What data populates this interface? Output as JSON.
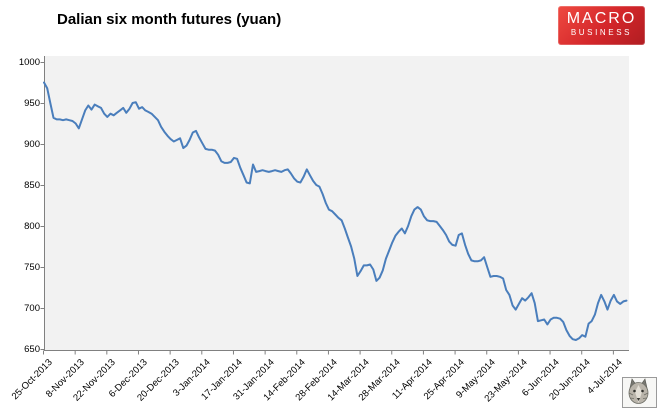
{
  "header": {
    "title": "Dalian six month futures (yuan)"
  },
  "logo": {
    "line1": "MACRO",
    "line2": "BUSINESS",
    "bg_color": "#cc2428",
    "text_color": "#ffffff"
  },
  "wolf_icon": {
    "name": "macrobusiness-wolf-mascot"
  },
  "chart_data": {
    "type": "line",
    "title": "Dalian six month futures (yuan)",
    "xlabel": "",
    "ylabel": "",
    "ylim": [
      650,
      1000
    ],
    "y_ticks": [
      650,
      700,
      750,
      800,
      850,
      900,
      950,
      1000
    ],
    "grid": false,
    "legend": false,
    "plot_bg": "#f2f2f2",
    "axis_color": "#808080",
    "series_color": "#4a7ebc",
    "x_tick_labels": [
      "25-Oct-2013",
      "8-Nov-2013",
      "22-Nov-2013",
      "6-Dec-2013",
      "20-Dec-2013",
      "3-Jan-2014",
      "17-Jan-2014",
      "31-Jan-2014",
      "14-Feb-2014",
      "28-Feb-2014",
      "14-Mar-2014",
      "28-Mar-2014",
      "11-Apr-2014",
      "25-Apr-2014",
      "9-May-2014",
      "23-May-2014",
      "6-Jun-2014",
      "20-Jun-2014",
      "4-Jul-2014"
    ],
    "points_per_tick": 10,
    "values": [
      975,
      968,
      950,
      932,
      930,
      930,
      929,
      930,
      929,
      928,
      925,
      919,
      930,
      941,
      947,
      942,
      948,
      946,
      944,
      937,
      933,
      937,
      935,
      938,
      941,
      944,
      938,
      943,
      950,
      951,
      943,
      945,
      941,
      939,
      937,
      933,
      929,
      921,
      915,
      910,
      906,
      903,
      905,
      907,
      895,
      898,
      905,
      914,
      916,
      908,
      901,
      894,
      893,
      893,
      892,
      887,
      879,
      877,
      877,
      878,
      883,
      882,
      871,
      862,
      853,
      852,
      875,
      866,
      867,
      868,
      867,
      866,
      867,
      868,
      867,
      866,
      868,
      869,
      864,
      858,
      854,
      853,
      860,
      869,
      862,
      855,
      850,
      848,
      839,
      828,
      820,
      818,
      814,
      810,
      807,
      797,
      786,
      775,
      760,
      739,
      745,
      752,
      752,
      753,
      747,
      733,
      737,
      746,
      760,
      770,
      780,
      788,
      793,
      797,
      791,
      800,
      812,
      820,
      823,
      820,
      812,
      807,
      806,
      806,
      805,
      800,
      795,
      789,
      781,
      777,
      776,
      789,
      791,
      777,
      766,
      758,
      757,
      757,
      758,
      762,
      750,
      738,
      739,
      739,
      738,
      736,
      722,
      716,
      703,
      698,
      705,
      712,
      709,
      713,
      718,
      706,
      684,
      685,
      686,
      680,
      686,
      688,
      688,
      687,
      683,
      673,
      666,
      662,
      661,
      663,
      667,
      665,
      681,
      684,
      692,
      706,
      716,
      708,
      698,
      709,
      716,
      708,
      705,
      708,
      709
    ]
  }
}
